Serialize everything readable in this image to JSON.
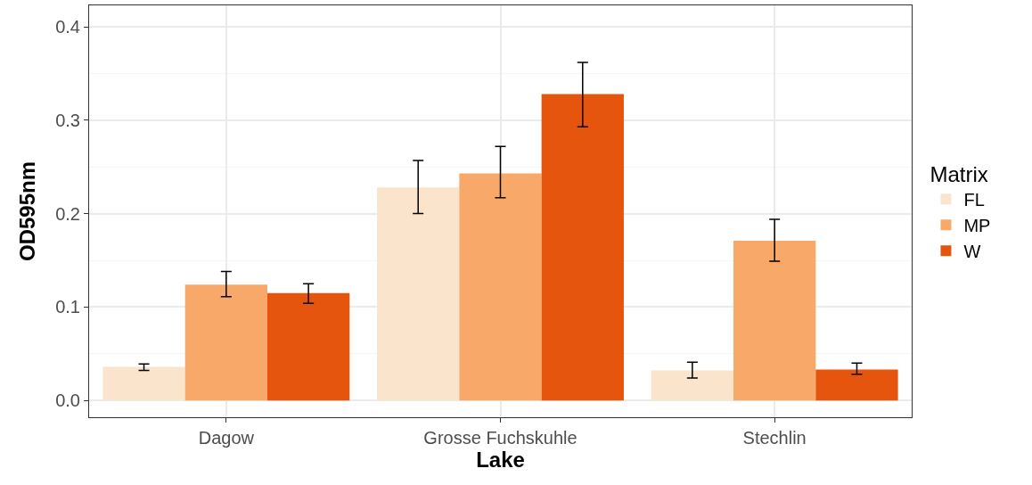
{
  "chart_data": {
    "type": "bar",
    "xlabel": "Lake",
    "ylabel": "OD595nm",
    "legend_title": "Matrix",
    "categories": [
      "Dagow",
      "Grosse Fuchskuhle",
      "Stechlin"
    ],
    "series": [
      {
        "name": "FL",
        "color": "#fae4cc",
        "values": [
          0.036,
          0.228,
          0.032
        ],
        "errors": [
          [
            0.032,
            0.039
          ],
          [
            0.2,
            0.257
          ],
          [
            0.024,
            0.041
          ]
        ]
      },
      {
        "name": "MP",
        "color": "#f8a96a",
        "values": [
          0.124,
          0.243,
          0.171
        ],
        "errors": [
          [
            0.111,
            0.138
          ],
          [
            0.217,
            0.272
          ],
          [
            0.149,
            0.194
          ]
        ]
      },
      {
        "name": "W",
        "color": "#e6550d",
        "values": [
          0.115,
          0.328,
          0.033
        ],
        "errors": [
          [
            0.104,
            0.125
          ],
          [
            0.293,
            0.362
          ],
          [
            0.028,
            0.04
          ]
        ]
      }
    ],
    "ylim": [
      -0.018,
      0.423
    ],
    "yticks": [
      {
        "value": 0.0,
        "label": "0.0"
      },
      0.1,
      0.2,
      0.3,
      0.4
    ],
    "grid": true,
    "legend": "right"
  }
}
